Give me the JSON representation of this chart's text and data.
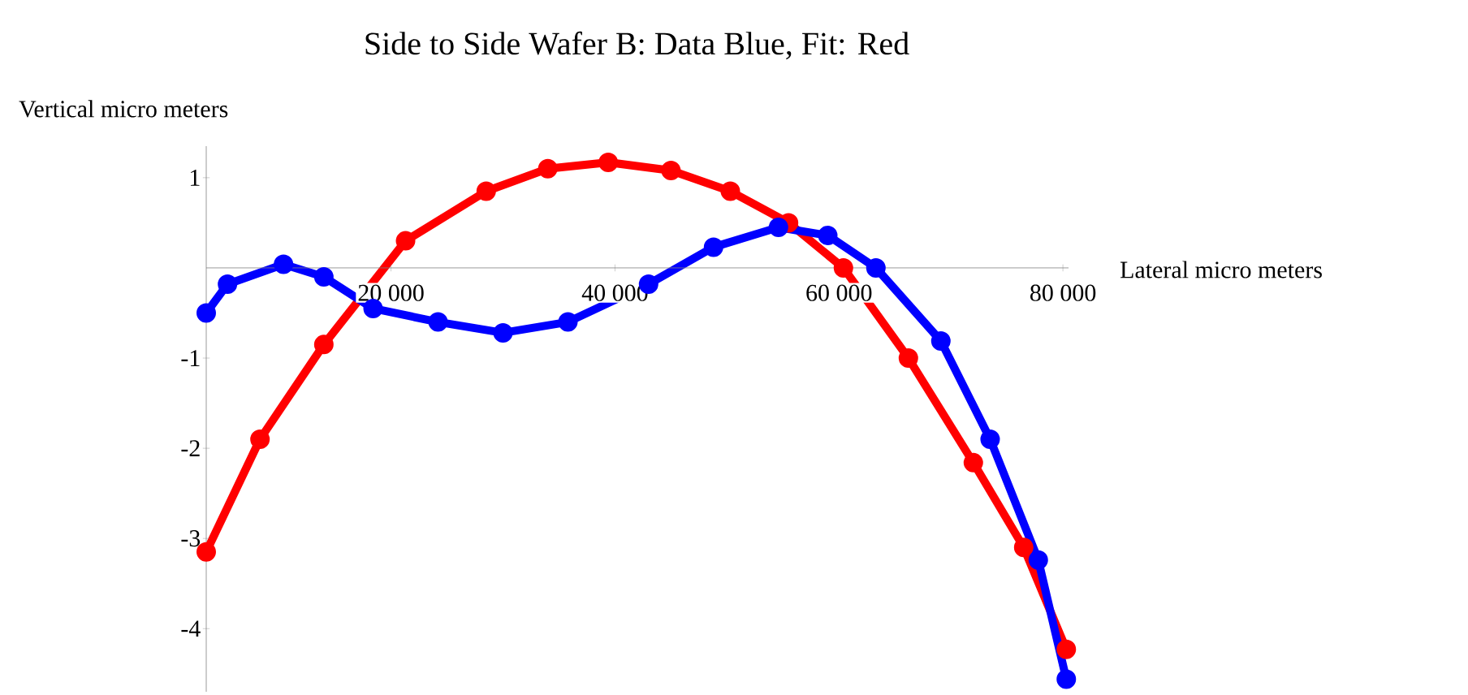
{
  "chart_data": {
    "type": "line",
    "title": "Side to Side Wafer B: Data Blue, Fit: Red",
    "xlabel": "Lateral micro meters",
    "ylabel": "Vertical micro meters",
    "xlim": [
      3500,
      80500
    ],
    "ylim": [
      -4.7,
      1.35
    ],
    "xticks": [
      {
        "value": 20000,
        "label": "20 000"
      },
      {
        "value": 40000,
        "label": "40 000"
      },
      {
        "value": 60000,
        "label": "60 000"
      },
      {
        "value": 80000,
        "label": "80 000"
      }
    ],
    "yticks": [
      -4,
      -3,
      -2,
      -1,
      1
    ],
    "marker": "circle",
    "series": [
      {
        "color": "#ff0000",
        "x": [
          3500,
          8300,
          14000,
          21300,
          28500,
          34000,
          39400,
          45000,
          50300,
          55500,
          60400,
          66200,
          72000,
          76500,
          80300
        ],
        "values": [
          -3.15,
          -1.9,
          -0.85,
          0.3,
          0.85,
          1.1,
          1.17,
          1.08,
          0.85,
          0.5,
          0.0,
          -1.0,
          -2.16,
          -3.1,
          -4.23
        ]
      },
      {
        "color": "#0000ff",
        "x": [
          3500,
          5400,
          10400,
          14000,
          18400,
          24200,
          30000,
          35800,
          43000,
          48800,
          54600,
          59000,
          63300,
          69100,
          73500,
          77800,
          80300
        ],
        "values": [
          -0.5,
          -0.18,
          0.04,
          -0.1,
          -0.45,
          -0.6,
          -0.72,
          -0.6,
          -0.18,
          0.23,
          0.45,
          0.36,
          0.0,
          -0.81,
          -1.9,
          -3.24,
          -4.56
        ]
      }
    ]
  }
}
